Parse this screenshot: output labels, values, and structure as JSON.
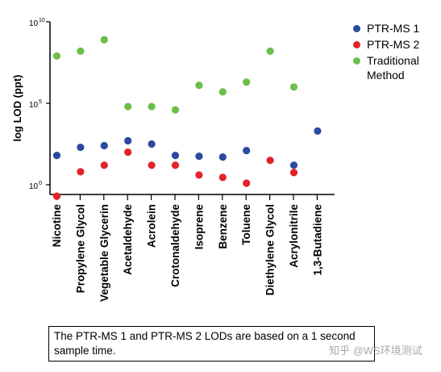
{
  "chart_data": {
    "type": "scatter",
    "ylabel": "log LOD (ppt)",
    "yscale": "log",
    "ylim_exponents": [
      0,
      10
    ],
    "yticks": [
      {
        "exp": "10",
        "value": 10000000000
      },
      {
        "exp": "5",
        "value": 100000
      },
      {
        "exp": "0",
        "value": 1
      }
    ],
    "categories": [
      "Nicotine",
      "Propylene Glycol",
      "Vegetable Glycerin",
      "Acetaldehyde",
      "Acrolein",
      "Crotonaldehyde",
      "Isoprene",
      "Benzene",
      "Toluene",
      "Diethylene Glycol",
      "Acrylonitrile",
      "1,3-Butadiene"
    ],
    "series": [
      {
        "name": "PTR-MS 1",
        "color": "#2b4aa0",
        "log_values": [
          1.8,
          2.3,
          2.4,
          2.7,
          2.5,
          1.8,
          1.75,
          1.7,
          2.1,
          null,
          1.2,
          3.3
        ]
      },
      {
        "name": "PTR-MS 2",
        "color": "#e3232a",
        "log_values": [
          -0.7,
          0.8,
          1.2,
          2.0,
          1.2,
          1.2,
          0.6,
          0.45,
          0.1,
          1.5,
          0.75,
          null
        ]
      },
      {
        "name": "Traditional Method",
        "color": "#6cbf49",
        "log_values": [
          7.9,
          8.2,
          8.9,
          4.8,
          4.8,
          4.6,
          6.1,
          5.7,
          6.3,
          8.2,
          6.0,
          null
        ]
      }
    ],
    "legend_position": "top-right",
    "grid": false
  },
  "legend": {
    "items": [
      {
        "label": "PTR-MS 1",
        "color": "#2b4aa0"
      },
      {
        "label": "PTR-MS 2",
        "color": "#e3232a"
      },
      {
        "label": "Traditional Method",
        "color": "#6cbf49"
      }
    ]
  },
  "footnote": "The PTR-MS 1 and PTR-MS 2 LODs are based on a 1 second sample time.",
  "watermark": "知乎 @WS环境测试"
}
